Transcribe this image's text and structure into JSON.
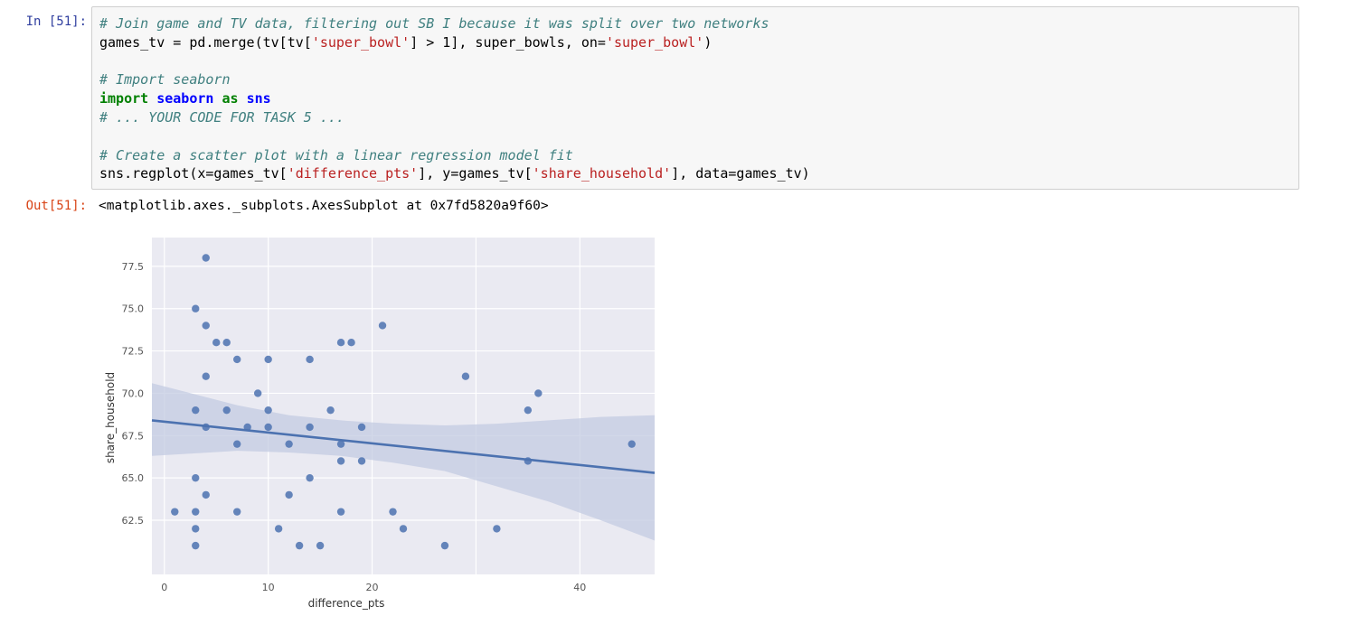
{
  "cell": {
    "input_prompt": "In [51]:",
    "output_prompt": "Out[51]:",
    "output_text": "<matplotlib.axes._subplots.AxesSubplot at 0x7fd5820a9f60>"
  },
  "code_lines": [
    {
      "comment": "# Join game and TV data, filtering out SB I because it was split over two networks"
    },
    {
      "pre": "games_tv = pd.merge(tv[tv[",
      "s1": "'super_bowl'",
      "mid": "] > 1], super_bowls, on=",
      "s2": "'super_bowl'",
      "post": ")"
    },
    {
      "blank": ""
    },
    {
      "comment": "# Import seaborn"
    },
    {
      "kw1": "import",
      "mod1": "seaborn",
      "kw2": "as",
      "mod2": "sns"
    },
    {
      "comment": "# ... YOUR CODE FOR TASK 5 ..."
    },
    {
      "blank": ""
    },
    {
      "comment": "# Create a scatter plot with a linear regression model fit"
    },
    {
      "pre": "sns.regplot(x=games_tv[",
      "s1": "'difference_pts'",
      "mid": "], y=games_tv[",
      "s2": "'share_household'",
      "post": "], data=games_tv)"
    }
  ],
  "chart_data": {
    "type": "scatter",
    "xlabel": "difference_pts",
    "ylabel": "share_household",
    "xlim": [
      -1.2,
      47.2
    ],
    "ylim": [
      59.3,
      79.2
    ],
    "xticks": [
      0,
      10,
      20,
      40
    ],
    "xtick_labels": [
      "0",
      "10",
      "20",
      "40"
    ],
    "yticks": [
      62.5,
      65.0,
      67.5,
      70.0,
      72.5,
      75.0,
      77.5
    ],
    "ytick_labels": [
      "62.5",
      "65.0",
      "67.5",
      "70.0",
      "72.5",
      "75.0",
      "77.5"
    ],
    "x_gridlines": [
      0,
      10,
      20,
      30,
      40
    ],
    "grid": true,
    "points": [
      [
        4,
        78
      ],
      [
        3,
        75
      ],
      [
        4,
        74
      ],
      [
        21,
        74
      ],
      [
        5,
        73
      ],
      [
        6,
        73
      ],
      [
        17,
        73
      ],
      [
        18,
        73
      ],
      [
        7,
        72
      ],
      [
        10,
        72
      ],
      [
        14,
        72
      ],
      [
        4,
        71
      ],
      [
        29,
        71
      ],
      [
        9,
        70
      ],
      [
        36,
        70
      ],
      [
        3,
        69
      ],
      [
        6,
        69
      ],
      [
        10,
        69
      ],
      [
        16,
        69
      ],
      [
        35,
        69
      ],
      [
        4,
        68
      ],
      [
        8,
        68
      ],
      [
        10,
        68
      ],
      [
        14,
        68
      ],
      [
        19,
        68
      ],
      [
        7,
        67
      ],
      [
        12,
        67
      ],
      [
        17,
        67
      ],
      [
        45,
        67
      ],
      [
        17,
        66
      ],
      [
        19,
        66
      ],
      [
        35,
        66
      ],
      [
        3,
        65
      ],
      [
        14,
        65
      ],
      [
        4,
        64
      ],
      [
        12,
        64
      ],
      [
        1,
        63
      ],
      [
        3,
        63
      ],
      [
        7,
        63
      ],
      [
        17,
        63
      ],
      [
        22,
        63
      ],
      [
        3,
        62
      ],
      [
        11,
        62
      ],
      [
        23,
        62
      ],
      [
        32,
        62
      ],
      [
        3,
        61
      ],
      [
        13,
        61
      ],
      [
        15,
        61
      ],
      [
        27,
        61
      ]
    ],
    "regression": {
      "x": [
        -1.2,
        47.2
      ],
      "y": [
        68.4,
        65.3
      ]
    },
    "confidence_band": {
      "x": [
        -1.2,
        7,
        12,
        17,
        22,
        27,
        32,
        37,
        42,
        47.2
      ],
      "upper": [
        70.6,
        69.3,
        68.7,
        68.4,
        68.2,
        68.1,
        68.2,
        68.4,
        68.6,
        68.7
      ],
      "lower": [
        66.3,
        66.6,
        66.5,
        66.3,
        65.9,
        65.4,
        64.5,
        63.6,
        62.5,
        61.3
      ]
    },
    "colors": {
      "background": "#eaeaf2",
      "grid": "#ffffff",
      "points": "#4c72b0",
      "line": "#4c72b0",
      "band": "#c3cbe2"
    }
  }
}
